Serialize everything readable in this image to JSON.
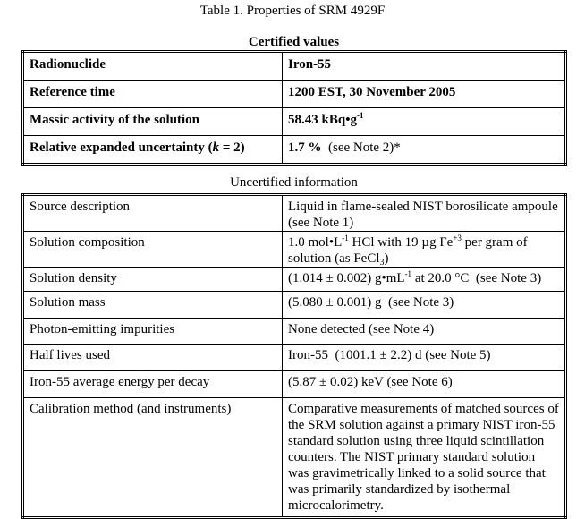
{
  "title": "Table 1. Properties of SRM 4929F",
  "certified": {
    "caption": "Certified values",
    "rows": [
      {
        "label": "Radionuclide",
        "value": "Iron-55"
      },
      {
        "label": "Reference time",
        "value": "1200 EST, 30 November 2005"
      },
      {
        "label": "Massic activity of the solution",
        "value": "58.43 kBq•g",
        "value_sup": "-1"
      },
      {
        "label_pre": "Relative expanded uncertainty (",
        "label_italic": "k",
        "label_post": " = 2)",
        "value": "1.7 %",
        "value_post": "  (see Note 2)*"
      }
    ]
  },
  "uncertified": {
    "caption": "Uncertified information",
    "rows": [
      {
        "label": "Source description",
        "value": "Liquid in flame-sealed NIST borosilicate ampoule (see Note 1)"
      },
      {
        "label": "Solution composition",
        "v1": "1.0 mol•L",
        "s1": "-1",
        "v2": " HCl with 19 µg Fe",
        "s2": "+3",
        "v3": " per gram of solution (as FeCl",
        "sub": "3",
        "v4": ")"
      },
      {
        "label": "Solution density",
        "v1": "(1.014 ± 0.002) g•mL",
        "s1": "-1",
        "v2": " at 20.0 °C  (see Note 3)"
      },
      {
        "label": "Solution mass",
        "value": "(5.080 ± 0.001) g  (see Note 3)"
      },
      {
        "label": "Photon-emitting impurities",
        "value": "None detected (see Note 4)"
      },
      {
        "label": "Half lives used",
        "value": "Iron-55  (1001.1 ± 2.2) d (see Note 5)"
      },
      {
        "label": "Iron-55 average energy per decay",
        "value": "(5.87 ± 0.02) keV (see Note 6)"
      },
      {
        "label": "Calibration method (and instruments)",
        "value": "Comparative measurements of matched sources of the SRM solution against a primary NIST iron-55 standard solution using three liquid scintillation counters.  The NIST primary standard solution was gravimetrically linked to a solid source that was primarily standardized by isothermal microcalorimetry."
      }
    ]
  }
}
